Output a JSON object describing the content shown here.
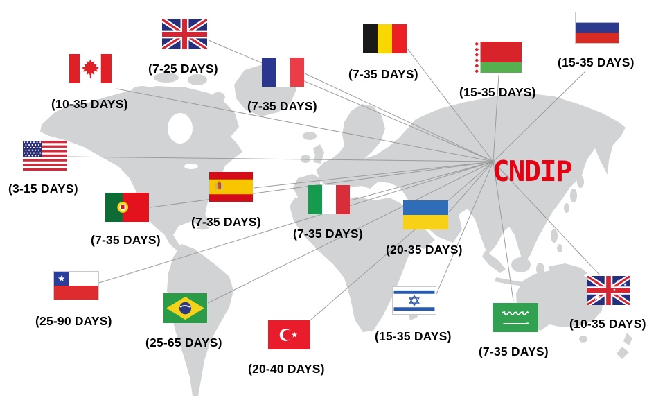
{
  "brand": {
    "label": "CNDIP",
    "color": "#e60012"
  },
  "map": {
    "land_color": "#d2d3d5",
    "ocean_color": "#ffffff",
    "line_color": "#9b9b9b"
  },
  "countries": [
    {
      "id": "canada",
      "name": "Canada",
      "days": "(10-35 DAYS)"
    },
    {
      "id": "uk",
      "name": "United Kingdom",
      "days": "(7-25 DAYS)"
    },
    {
      "id": "france",
      "name": "France",
      "days": "(7-35 DAYS)"
    },
    {
      "id": "belgium",
      "name": "Belgium",
      "days": "(7-35 DAYS)"
    },
    {
      "id": "belarus",
      "name": "Belarus",
      "days": "(15-35 DAYS)"
    },
    {
      "id": "russia",
      "name": "Russia",
      "days": "(15-35 DAYS)"
    },
    {
      "id": "usa",
      "name": "United States",
      "days": "(3-15 DAYS)"
    },
    {
      "id": "portugal",
      "name": "Portugal",
      "days": "(7-35 DAYS)"
    },
    {
      "id": "spain",
      "name": "Spain",
      "days": "(7-35 DAYS)"
    },
    {
      "id": "italy",
      "name": "Italy",
      "days": "(7-35 DAYS)"
    },
    {
      "id": "ukraine",
      "name": "Ukraine",
      "days": "(20-35 DAYS)"
    },
    {
      "id": "chile",
      "name": "Chile",
      "days": "(25-90 DAYS)"
    },
    {
      "id": "brazil",
      "name": "Brazil",
      "days": "(25-65 DAYS)"
    },
    {
      "id": "turkey",
      "name": "Turkey",
      "days": "(20-40 DAYS)"
    },
    {
      "id": "israel",
      "name": "Israel",
      "days": "(15-35 DAYS)"
    },
    {
      "id": "saudi_arabia",
      "name": "Saudi Arabia",
      "days": "(7-35 DAYS)"
    },
    {
      "id": "australia",
      "name": "Australia",
      "days": "(10-35 DAYS)"
    }
  ]
}
